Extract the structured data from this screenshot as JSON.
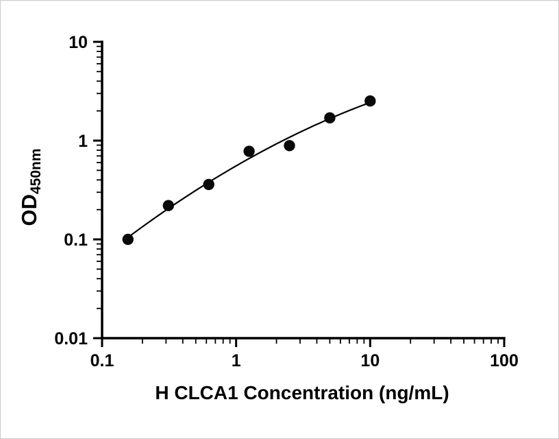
{
  "chart_data": {
    "type": "scatter",
    "title": "",
    "xlabel": "H CLCA1 Concentration (ng/mL)",
    "ylabel_main": "OD",
    "ylabel_sub": "450nm",
    "x_scale": "log",
    "y_scale": "log",
    "xlim": [
      0.1,
      100
    ],
    "ylim": [
      0.01,
      10
    ],
    "x_ticks": [
      0.1,
      1,
      10,
      100
    ],
    "x_tick_labels": [
      "0.1",
      "1",
      "10",
      "100"
    ],
    "y_ticks": [
      0.01,
      0.1,
      1,
      10
    ],
    "y_tick_labels": [
      "0.01",
      "0.1",
      "1",
      "10"
    ],
    "grid": false,
    "legend": "none",
    "fit_line": true,
    "marker_color": "#0a0a0a",
    "line_color": "#000000",
    "points": [
      {
        "x": 0.156,
        "y": 0.1
      },
      {
        "x": 0.3125,
        "y": 0.22
      },
      {
        "x": 0.625,
        "y": 0.36
      },
      {
        "x": 1.25,
        "y": 0.78
      },
      {
        "x": 2.5,
        "y": 0.89
      },
      {
        "x": 5,
        "y": 1.7
      },
      {
        "x": 10,
        "y": 2.52
      }
    ]
  }
}
